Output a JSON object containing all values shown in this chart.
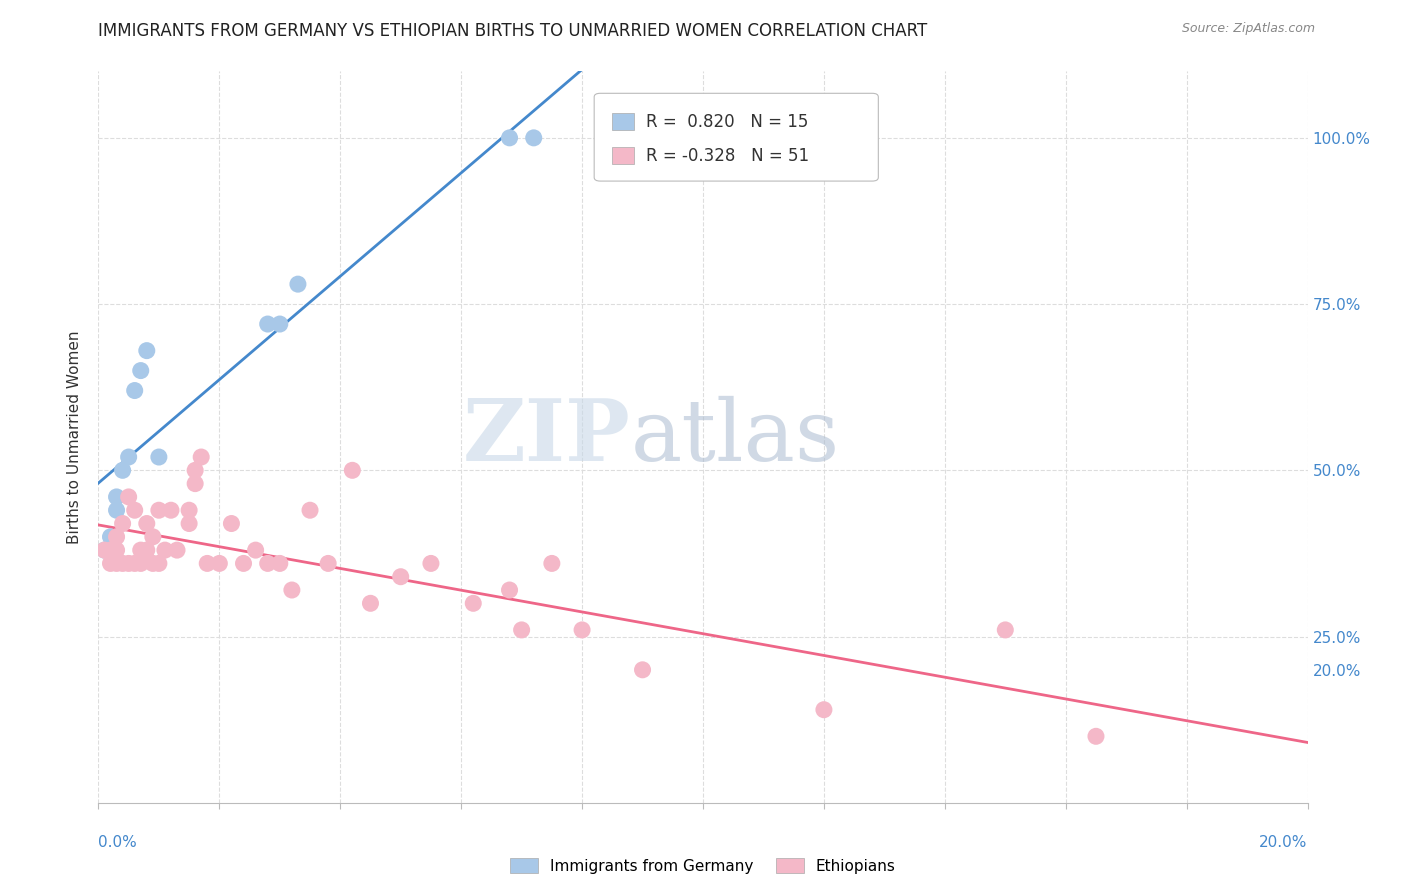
{
  "title": "IMMIGRANTS FROM GERMANY VS ETHIOPIAN BIRTHS TO UNMARRIED WOMEN CORRELATION CHART",
  "source": "Source: ZipAtlas.com",
  "ylabel": "Births to Unmarried Women",
  "blue_R": 0.82,
  "blue_N": 15,
  "pink_R": -0.328,
  "pink_N": 51,
  "blue_color": "#a8c8e8",
  "pink_color": "#f4b8c8",
  "blue_line_color": "#4488cc",
  "pink_line_color": "#ee6688",
  "watermark_zip": "ZIP",
  "watermark_atlas": "atlas",
  "xmin": 0.0,
  "xmax": 0.2,
  "ymin": 0.0,
  "ymax": 1.1,
  "blue_points_x": [
    0.001,
    0.002,
    0.003,
    0.003,
    0.004,
    0.005,
    0.006,
    0.007,
    0.008,
    0.01,
    0.028,
    0.03,
    0.033,
    0.068,
    0.072
  ],
  "blue_points_y": [
    0.38,
    0.4,
    0.44,
    0.46,
    0.5,
    0.52,
    0.62,
    0.65,
    0.68,
    0.52,
    0.72,
    0.72,
    0.78,
    1.0,
    1.0
  ],
  "pink_points_x": [
    0.001,
    0.002,
    0.002,
    0.003,
    0.003,
    0.003,
    0.004,
    0.004,
    0.005,
    0.005,
    0.006,
    0.006,
    0.007,
    0.007,
    0.008,
    0.008,
    0.009,
    0.009,
    0.01,
    0.01,
    0.011,
    0.012,
    0.013,
    0.015,
    0.015,
    0.016,
    0.016,
    0.017,
    0.018,
    0.02,
    0.022,
    0.024,
    0.026,
    0.028,
    0.03,
    0.032,
    0.035,
    0.038,
    0.042,
    0.045,
    0.05,
    0.055,
    0.062,
    0.068,
    0.07,
    0.075,
    0.08,
    0.09,
    0.12,
    0.15,
    0.165
  ],
  "pink_points_y": [
    0.38,
    0.36,
    0.38,
    0.36,
    0.38,
    0.4,
    0.36,
    0.42,
    0.36,
    0.46,
    0.36,
    0.44,
    0.36,
    0.38,
    0.38,
    0.42,
    0.4,
    0.36,
    0.36,
    0.44,
    0.38,
    0.44,
    0.38,
    0.42,
    0.44,
    0.48,
    0.5,
    0.52,
    0.36,
    0.36,
    0.42,
    0.36,
    0.38,
    0.36,
    0.36,
    0.32,
    0.44,
    0.36,
    0.5,
    0.3,
    0.34,
    0.36,
    0.3,
    0.32,
    0.26,
    0.36,
    0.26,
    0.2,
    0.14,
    0.26,
    0.1
  ],
  "right_ytick_positions": [
    0.2,
    0.25,
    0.5,
    0.75,
    1.0
  ],
  "right_ytick_labels": [
    "20.0%",
    "25.0%",
    "50.0%",
    "75.0%",
    "100.0%"
  ]
}
